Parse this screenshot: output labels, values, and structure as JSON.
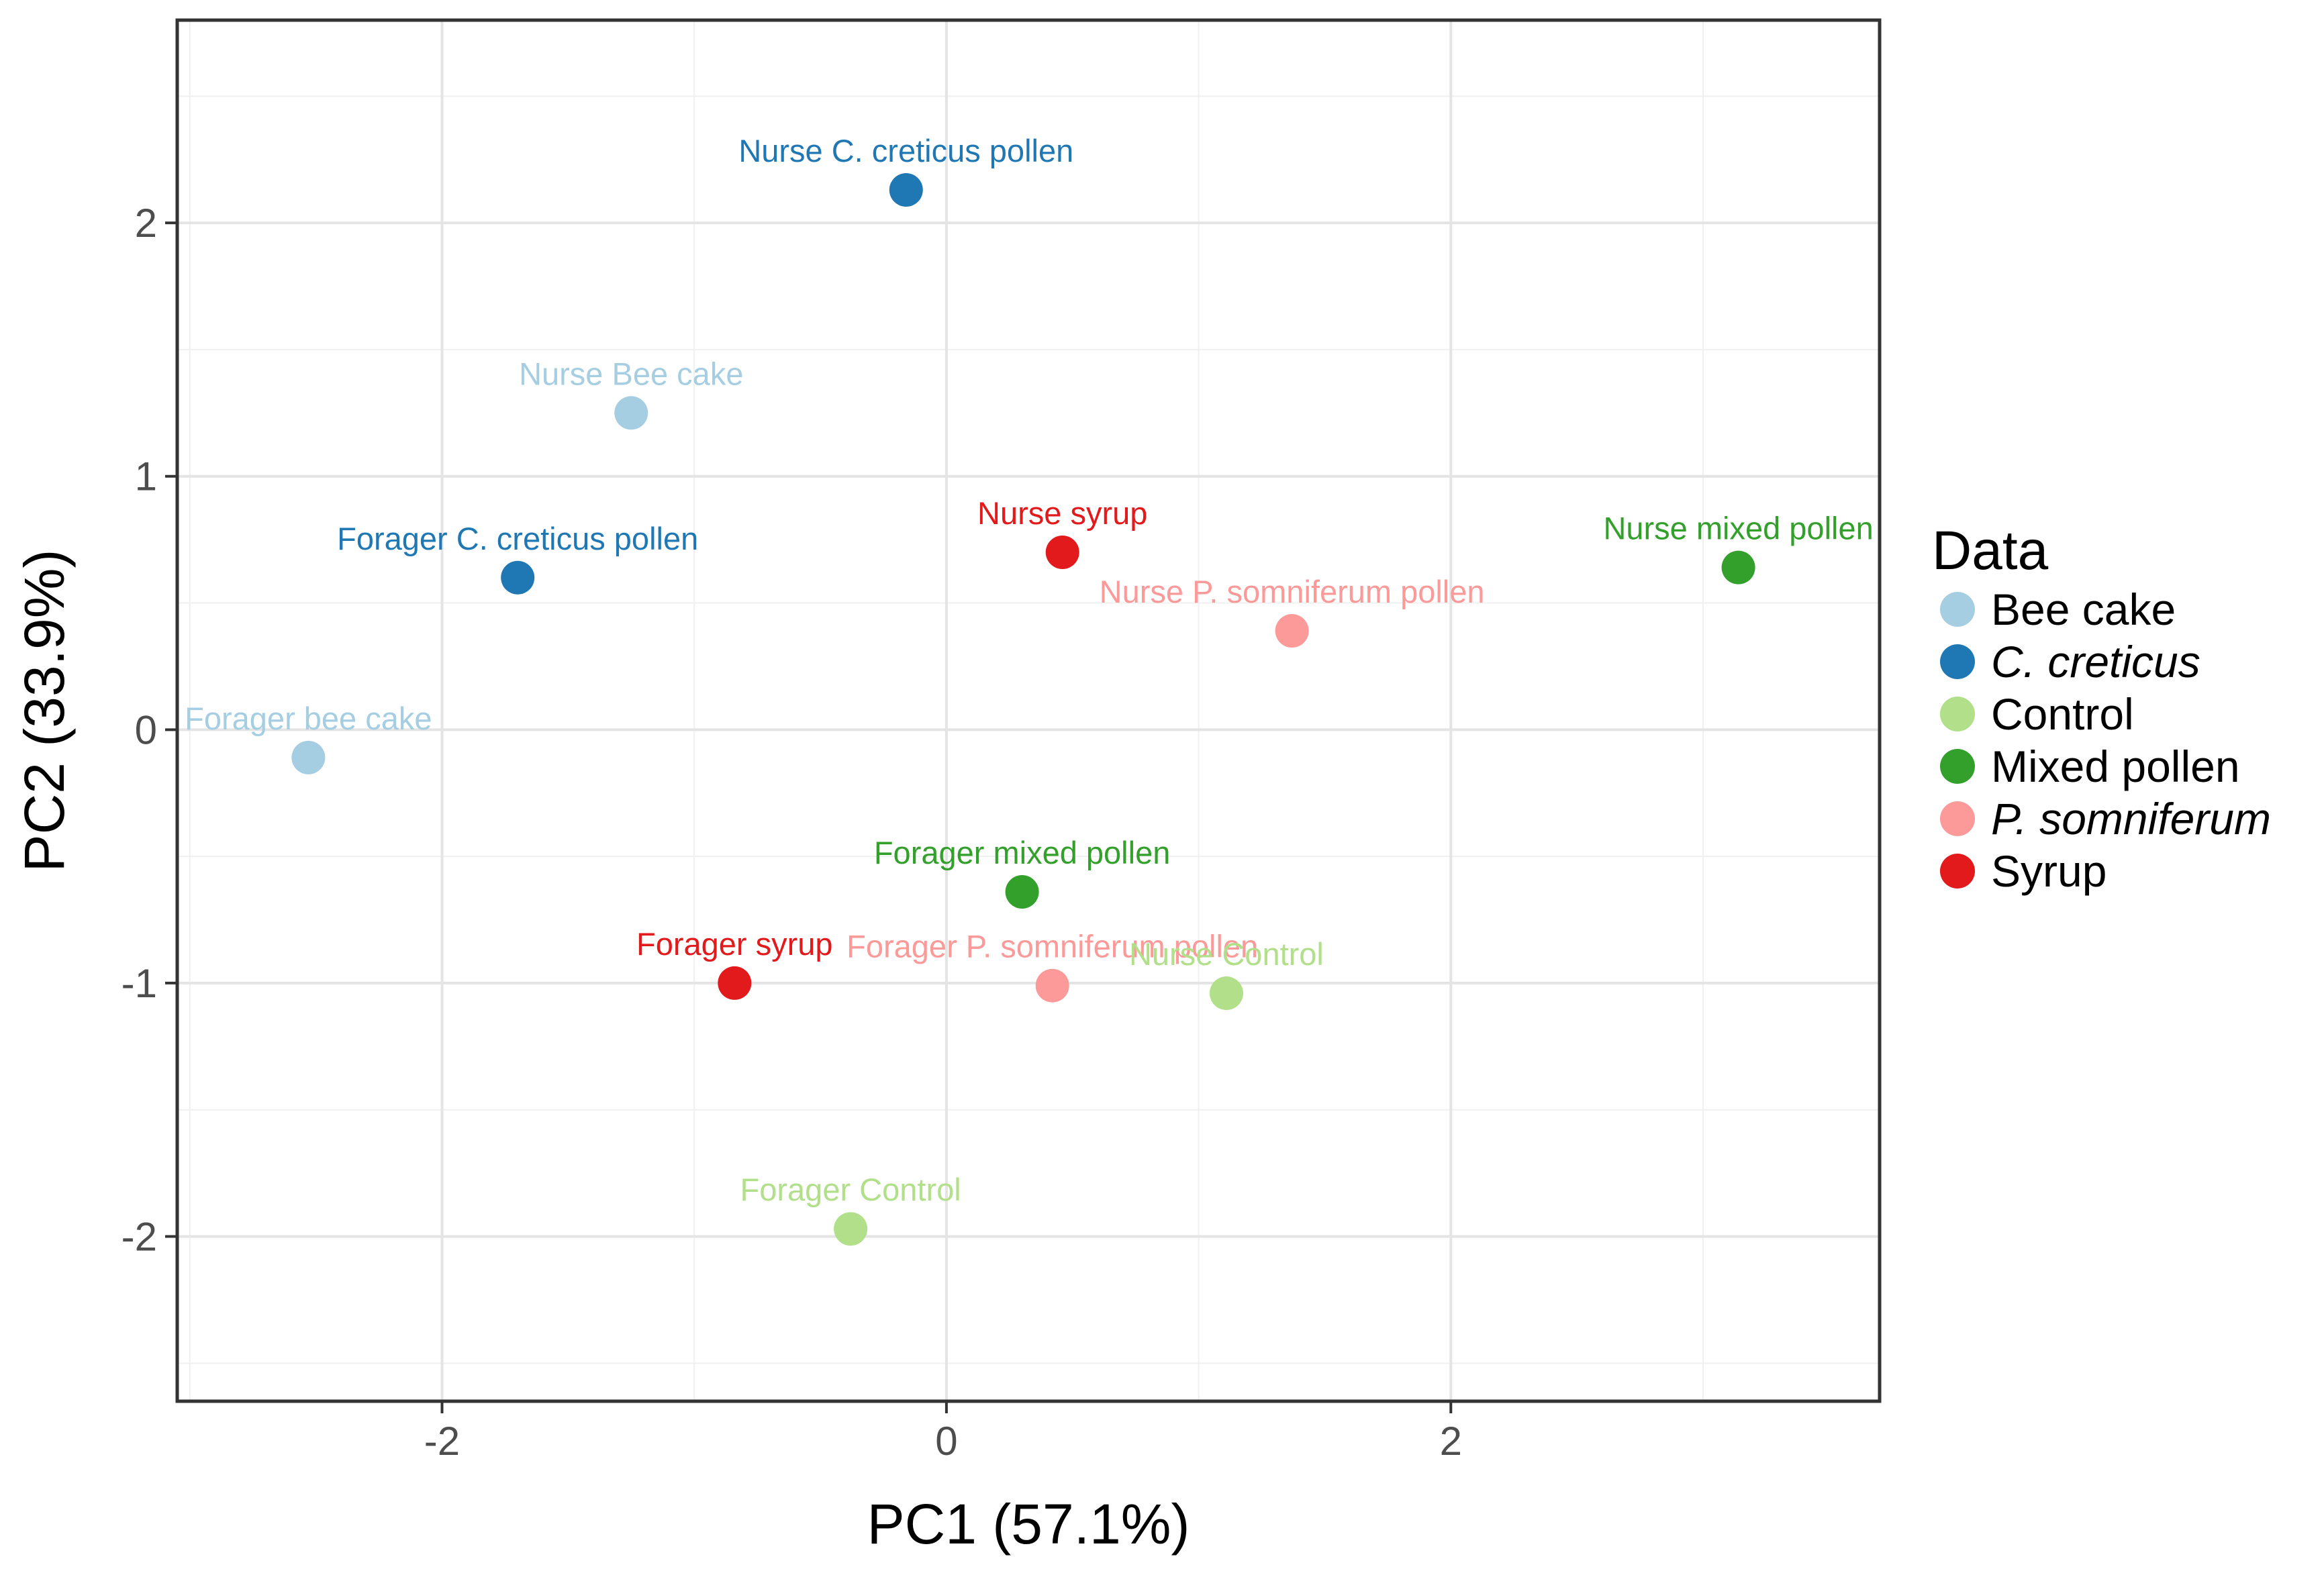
{
  "chart_data": {
    "type": "scatter",
    "xlabel": "PC1 (57.1%)",
    "ylabel": "PC2 (33.9%)",
    "xlim": [
      -3.05,
      3.7
    ],
    "ylim": [
      -2.65,
      2.8
    ],
    "x_ticks": [
      -2,
      0,
      2
    ],
    "x_tick_labels": [
      "-2",
      "0",
      "2"
    ],
    "y_ticks": [
      -2,
      -1,
      0,
      1,
      2
    ],
    "y_tick_labels": [
      "-2",
      "-1",
      "0",
      "1",
      "2"
    ],
    "grid": true,
    "legend_position": "right",
    "legend": {
      "title": "Data",
      "entries": [
        {
          "label": "Bee cake",
          "color": "#a6cee3",
          "italic": false
        },
        {
          "label": "C. creticus",
          "color": "#1f78b4",
          "italic": true
        },
        {
          "label": "Control",
          "color": "#b2df8a",
          "italic": false
        },
        {
          "label": "Mixed pollen",
          "color": "#33a02c",
          "italic": false
        },
        {
          "label": "P. somniferum",
          "color": "#fb9a99",
          "italic": true
        },
        {
          "label": "Syrup",
          "color": "#e31a1c",
          "italic": false
        }
      ]
    },
    "points": [
      {
        "label": "Nurse C. creticus pollen",
        "group": "C. creticus",
        "x": -0.16,
        "y": 2.13
      },
      {
        "label": "Nurse Bee cake",
        "group": "Bee cake",
        "x": -1.25,
        "y": 1.25
      },
      {
        "label": "Forager C. creticus pollen",
        "group": "C. creticus",
        "x": -1.7,
        "y": 0.6
      },
      {
        "label": "Nurse syrup",
        "group": "Syrup",
        "x": 0.46,
        "y": 0.7
      },
      {
        "label": "Nurse P. somniferum pollen",
        "group": "P. somniferum",
        "x": 1.37,
        "y": 0.39
      },
      {
        "label": "Nurse mixed pollen",
        "group": "Mixed pollen",
        "x": 3.14,
        "y": 0.64
      },
      {
        "label": "Forager bee cake",
        "group": "Bee cake",
        "x": -2.53,
        "y": -0.11
      },
      {
        "label": "Forager mixed pollen",
        "group": "Mixed pollen",
        "x": 0.3,
        "y": -0.64
      },
      {
        "label": "Forager syrup",
        "group": "Syrup",
        "x": -0.84,
        "y": -1.0
      },
      {
        "label": "Forager P. somniferum pollen",
        "group": "P. somniferum",
        "x": 0.42,
        "y": -1.01
      },
      {
        "label": "Nurse Control",
        "group": "Control",
        "x": 1.11,
        "y": -1.04
      },
      {
        "label": "Forager Control",
        "group": "Control",
        "x": -0.38,
        "y": -1.97
      }
    ]
  }
}
